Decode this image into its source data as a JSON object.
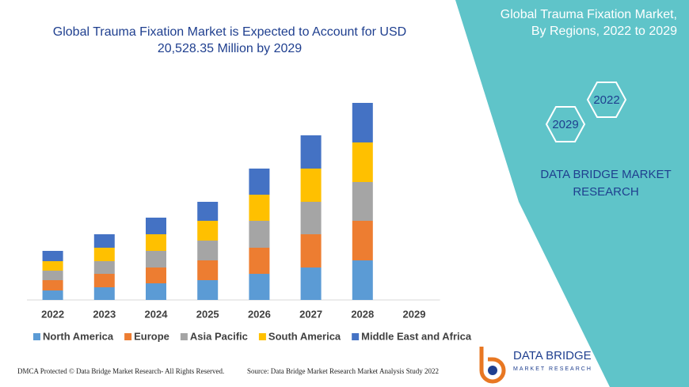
{
  "chart_data": {
    "type": "bar",
    "stacked": true,
    "title": "Global Trauma Fixation Market is Expected to Account for USD 20,528.35 Million by 2029",
    "categories": [
      "2022",
      "2023",
      "2024",
      "2025",
      "2026",
      "2027",
      "2028",
      "2029"
    ],
    "series": [
      {
        "name": "North America",
        "color": "#5b9bd5",
        "values": [
          12,
          16,
          21,
          25,
          33,
          41,
          50,
          null
        ]
      },
      {
        "name": "Europe",
        "color": "#ed7d31",
        "values": [
          13,
          17,
          20,
          25,
          33,
          42,
          50,
          null
        ]
      },
      {
        "name": "Asia Pacific",
        "color": "#a5a5a5",
        "values": [
          12,
          16,
          21,
          25,
          34,
          41,
          49,
          null
        ]
      },
      {
        "name": "South America",
        "color": "#ffc000",
        "values": [
          12,
          17,
          21,
          25,
          33,
          42,
          50,
          null
        ]
      },
      {
        "name": "Middle East and Africa",
        "color": "#4472c4",
        "values": [
          13,
          17,
          21,
          24,
          33,
          42,
          50,
          null
        ]
      }
    ]
  },
  "panel": {
    "title": "Global Trauma Fixation Market, By Regions, 2022 to 2029",
    "hex_labels": [
      "2022",
      "2029"
    ],
    "brand": "DATA BRIDGE MARKET RESEARCH"
  },
  "footer": {
    "left": "DMCA Protected © Data Bridge Market Research- All Rights Reserved.",
    "right": "Source: Data Bridge Market Research Market Analysis Study 2022"
  },
  "logo": {
    "name": "DATA BRIDGE",
    "tagline": "MARKET RESEARCH"
  }
}
